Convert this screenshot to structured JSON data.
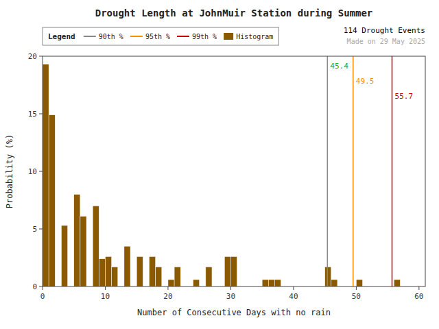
{
  "chart_data": {
    "type": "histogram",
    "title": "Drought Length at JohnMuir Station during Summer",
    "x_label": "Number of Consecutive Days with no rain",
    "y_label": "Probability (%)",
    "bins": [
      0,
      1,
      2,
      3,
      4,
      5,
      6,
      7,
      8,
      9,
      10,
      11,
      12,
      13,
      14,
      15,
      16,
      17,
      18,
      19,
      20,
      21,
      22,
      23,
      24,
      25,
      26,
      27,
      28,
      29,
      30,
      31,
      32,
      33,
      34,
      35,
      36,
      37,
      38,
      39,
      40,
      41,
      42,
      43,
      44,
      45,
      46,
      47,
      48,
      49,
      50,
      51,
      52,
      53,
      54,
      55,
      56,
      57,
      58,
      59,
      60
    ],
    "series": [
      {
        "name": "Histogram",
        "color": "#8B5A00",
        "values": [
          19.3,
          14.9,
          0.0,
          5.3,
          0.0,
          8.0,
          6.1,
          0.0,
          7.0,
          2.4,
          2.6,
          1.7,
          0.0,
          3.5,
          0.0,
          2.6,
          0.0,
          2.6,
          1.7,
          0.0,
          0.6,
          1.7,
          0.0,
          0.0,
          0.6,
          0.0,
          1.7,
          0.0,
          0.0,
          2.6,
          2.6,
          0.0,
          0.0,
          0.0,
          0.0,
          0.6,
          0.6,
          0.6,
          0.0,
          0.0,
          0.0,
          0.0,
          0.0,
          0.0,
          0.0,
          1.7,
          0.6,
          0.0,
          0.0,
          0.0,
          0.6,
          0.0,
          0.0,
          0.0,
          0.0,
          0.0,
          0.6,
          0.0,
          0.0,
          0.0
        ]
      }
    ],
    "lines": [
      {
        "name": "90th %",
        "value": 45.4,
        "label": "45.4",
        "color": "#888888",
        "label_color": "#00BB00"
      },
      {
        "name": "95th %",
        "value": 49.5,
        "label": "49.5",
        "color": "#FF8C00",
        "label_color": "#FF8C00"
      },
      {
        "name": "99th %",
        "value": 55.7,
        "label": "55.7",
        "color": "#CC0000",
        "label_color": "#CC0000"
      }
    ],
    "legend_title": "Legend",
    "legend": "top",
    "annotations": [
      {
        "text": "114 Drought Events",
        "color": "#000000"
      },
      {
        "text": "Made on 29 May 2025",
        "color": "#AAAAAA"
      }
    ],
    "xlim": [
      0,
      61
    ],
    "ylim": [
      0,
      20
    ],
    "xticks": [
      0,
      10,
      20,
      30,
      40,
      50,
      60
    ],
    "yticks": [
      0,
      5,
      10,
      15,
      20
    ],
    "grid": false
  }
}
